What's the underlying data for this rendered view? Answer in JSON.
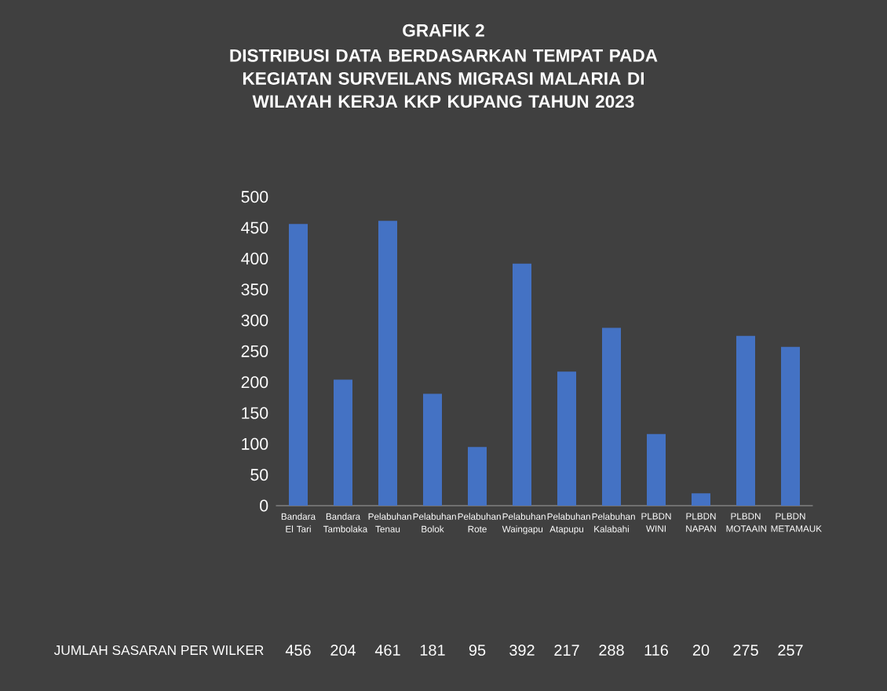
{
  "chart_data": {
    "type": "bar",
    "title": "GRAFIK 2",
    "subtitle": "DISTRIBUSI DATA BERDASARKAN TEMPAT PADA KEGIATAN SURVEILANS MIGRASI MALARIA DI WILAYAH KERJA KKP KUPANG TAHUN 2023",
    "categories": [
      "Bandara El Tari",
      "Bandara Tambolaka",
      "Pelabuhan Tenau",
      "Pelabuhan Bolok",
      "Pelabuhan Rote",
      "Pelabuhan Waingapu",
      "Pelabuhan Atapupu",
      "Pelabuhan Kalabahi",
      "PLBDN WINI",
      "PLBDN NAPAN",
      "PLBDN MOTAAIN",
      "PLBDN METAMAUK"
    ],
    "series": [
      {
        "name": "JUMLAH SASARAN PER WILKER",
        "color": "#4472c4",
        "values": [
          456,
          204,
          461,
          181,
          95,
          392,
          217,
          288,
          116,
          20,
          275,
          257
        ]
      }
    ],
    "ylim": [
      0,
      500
    ],
    "yticks": [
      0,
      50,
      100,
      150,
      200,
      250,
      300,
      350,
      400,
      450,
      500
    ],
    "data_labels": true,
    "legend": false,
    "grid": false
  }
}
